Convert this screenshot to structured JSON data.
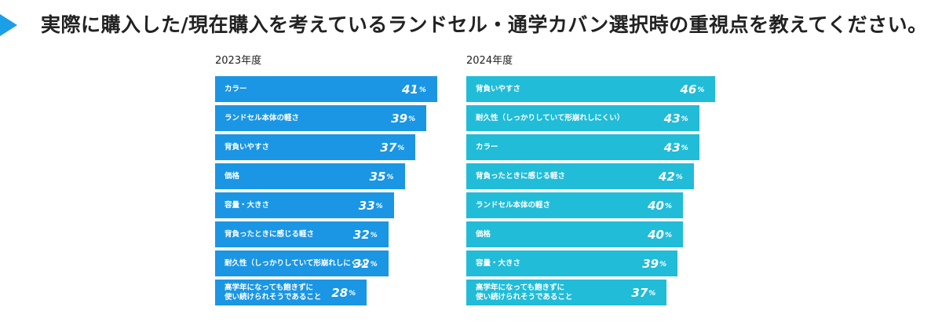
{
  "header": {
    "title": "実際に購入した/現在購入を考えているランドセル・通学カバン選択時の重視点を教えてください。"
  },
  "chart_data": [
    {
      "type": "bar",
      "orientation": "horizontal",
      "title": "2023年度",
      "color": "#1a96e4",
      "unit": "%",
      "categories": [
        "カラー",
        "ランドセル本体の軽さ",
        "背負いやすさ",
        "価格",
        "容量・大きさ",
        "背負ったときに感じる軽さ",
        "耐久性（しっかりしていて形崩れしにくい）",
        "高学年になっても飽きずに\n使い続けられそうであること"
      ],
      "values": [
        41,
        39,
        37,
        35,
        33,
        32,
        32,
        28
      ],
      "value_labels": [
        "41",
        "39",
        "37",
        "35",
        "33",
        "32",
        "32",
        "28"
      ]
    },
    {
      "type": "bar",
      "orientation": "horizontal",
      "title": "2024年度",
      "color": "#21bcd8",
      "unit": "%",
      "categories": [
        "背負いやすさ",
        "耐久性（しっかりしていて形崩れしにくい）",
        "カラー",
        "背負ったときに感じる軽さ",
        "ランドセル本体の軽さ",
        "価格",
        "容量・大きさ",
        "高学年になっても飽きずに\n使い続けられそうであること"
      ],
      "values": [
        46,
        43,
        43,
        42,
        40,
        40,
        39,
        37
      ],
      "value_labels": [
        "46",
        "43",
        "43",
        "42",
        "40",
        "40",
        "39",
        "37"
      ]
    }
  ]
}
